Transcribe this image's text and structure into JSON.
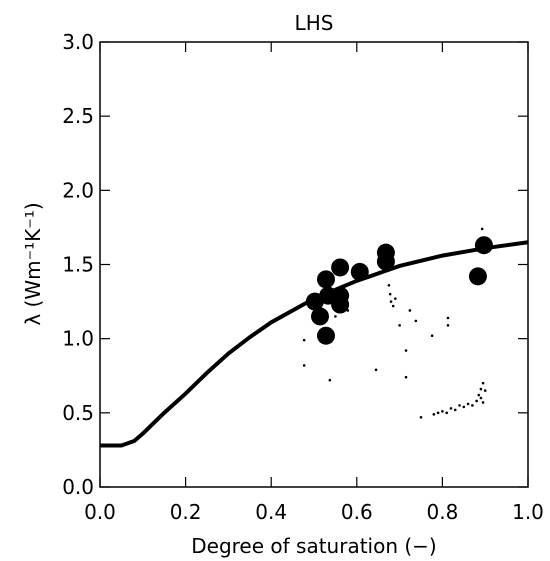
{
  "chart_data": {
    "type": "scatter",
    "title": "LHS",
    "xlabel": "Degree of saturation (−)",
    "ylabel": "λ (Wm⁻¹K⁻¹)",
    "xlim": [
      0,
      1
    ],
    "ylim": [
      0,
      3
    ],
    "xticks": [
      {
        "value": 0,
        "label": "0.0"
      },
      0.2,
      0.4,
      0.6,
      0.8,
      {
        "value": 1,
        "label": "1.0"
      }
    ],
    "yticks": [
      {
        "value": 0,
        "label": "0.0"
      },
      0.5,
      {
        "value": 1,
        "label": "1.0"
      },
      1.5,
      {
        "value": 2,
        "label": "2.0"
      },
      2.5,
      {
        "value": 3,
        "label": "3.0"
      }
    ],
    "series": [
      {
        "marker": "line",
        "color": "#000000",
        "x": [
          0,
          0.05,
          0.08,
          0.1,
          0.15,
          0.2,
          0.25,
          0.3,
          0.35,
          0.4,
          0.45,
          0.5,
          0.6,
          0.7,
          0.8,
          0.9,
          1.0
        ],
        "values": [
          0.28,
          0.28,
          0.31,
          0.36,
          0.5,
          0.63,
          0.77,
          0.9,
          1.01,
          1.11,
          1.19,
          1.27,
          1.39,
          1.49,
          1.56,
          1.61,
          1.65
        ]
      },
      {
        "marker": "circle",
        "color": "#000000",
        "x": [
          0.502,
          0.514,
          0.528,
          0.528,
          0.533,
          0.561,
          0.561,
          0.561,
          0.607,
          0.668,
          0.668,
          0.883,
          0.897
        ],
        "values": [
          1.25,
          1.15,
          1.02,
          1.4,
          1.29,
          1.48,
          1.29,
          1.23,
          1.45,
          1.58,
          1.52,
          1.42,
          1.63
        ]
      },
      {
        "marker": "dot",
        "color": "#000000",
        "x": [
          0.477,
          0.477,
          0.537,
          0.55,
          0.579,
          0.645,
          0.675,
          0.678,
          0.68,
          0.685,
          0.69,
          0.7,
          0.715,
          0.715,
          0.724,
          0.738,
          0.776,
          0.813,
          0.813,
          0.75,
          0.78,
          0.79,
          0.8,
          0.81,
          0.82,
          0.83,
          0.84,
          0.85,
          0.86,
          0.87,
          0.88,
          0.885,
          0.89,
          0.89,
          0.895,
          0.895,
          0.9,
          0.893
        ],
        "values": [
          0.99,
          0.82,
          0.72,
          1.15,
          1.19,
          0.79,
          1.36,
          1.3,
          1.25,
          1.22,
          1.27,
          1.09,
          0.92,
          0.74,
          1.19,
          1.12,
          1.02,
          1.14,
          1.09,
          0.47,
          0.49,
          0.5,
          0.51,
          0.5,
          0.53,
          0.52,
          0.55,
          0.54,
          0.56,
          0.55,
          0.58,
          0.62,
          0.66,
          0.6,
          0.7,
          0.57,
          0.65,
          1.74
        ]
      }
    ]
  }
}
